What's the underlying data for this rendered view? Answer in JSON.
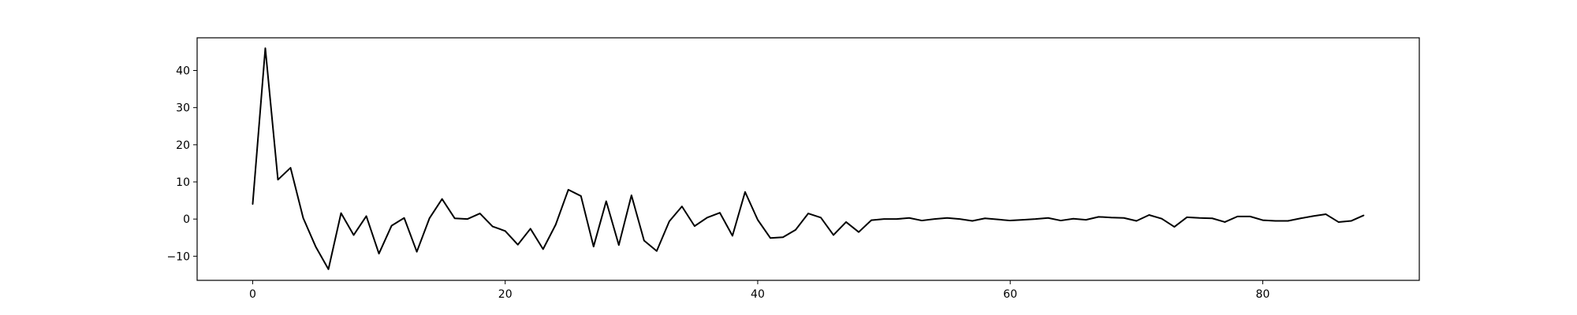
{
  "chart_data": {
    "type": "line",
    "title": "",
    "xlabel": "",
    "ylabel": "",
    "xlim": [
      -4.4,
      92.4
    ],
    "ylim": [
      -16.5,
      48.8
    ],
    "grid": false,
    "x_ticks": [
      0,
      20,
      40,
      60,
      80
    ],
    "y_ticks": [
      -10,
      0,
      10,
      20,
      30,
      40
    ],
    "series": [
      {
        "color": "#000000",
        "x": [
          0,
          1,
          2,
          3,
          4,
          5,
          6,
          7,
          8,
          9,
          10,
          11,
          12,
          13,
          14,
          15,
          16,
          17,
          18,
          19,
          20,
          21,
          22,
          23,
          24,
          25,
          26,
          27,
          28,
          29,
          30,
          31,
          32,
          33,
          34,
          35,
          36,
          37,
          38,
          39,
          40,
          41,
          42,
          43,
          44,
          45,
          46,
          47,
          48,
          49,
          50,
          51,
          52,
          53,
          54,
          55,
          56,
          57,
          58,
          59,
          60,
          61,
          62,
          63,
          64,
          65,
          66,
          67,
          68,
          69,
          70,
          71,
          72,
          73,
          74,
          75,
          76,
          77,
          78,
          79,
          80,
          81,
          82,
          83,
          84,
          85,
          86,
          87,
          88
        ],
        "values": [
          4.0,
          46.0,
          10.6,
          13.8,
          0.3,
          -7.5,
          -13.5,
          1.6,
          -4.3,
          0.8,
          -9.3,
          -1.8,
          0.3,
          -8.8,
          0.2,
          5.4,
          0.2,
          0.0,
          1.5,
          -2.0,
          -3.2,
          -6.9,
          -2.6,
          -8.1,
          -1.5,
          7.9,
          6.2,
          -7.4,
          4.8,
          -7.0,
          6.4,
          -5.8,
          -8.6,
          -0.6,
          3.4,
          -1.9,
          0.4,
          1.7,
          -4.5,
          7.3,
          -0.2,
          -5.1,
          -4.9,
          -2.9,
          1.5,
          0.4,
          -4.3,
          -0.8,
          -3.5,
          -0.3,
          0.0,
          0.0,
          0.3,
          -0.4,
          0.0,
          0.3,
          0.0,
          -0.5,
          0.2,
          -0.1,
          -0.4,
          -0.2,
          0.0,
          0.3,
          -0.4,
          0.1,
          -0.2,
          0.6,
          0.4,
          0.3,
          -0.5,
          1.1,
          0.1,
          -2.1,
          0.5,
          0.3,
          0.2,
          -0.8,
          0.7,
          0.7,
          -0.3,
          -0.5,
          -0.5,
          0.2,
          0.8,
          1.3,
          -0.8,
          -0.5,
          1.0
        ]
      }
    ]
  }
}
